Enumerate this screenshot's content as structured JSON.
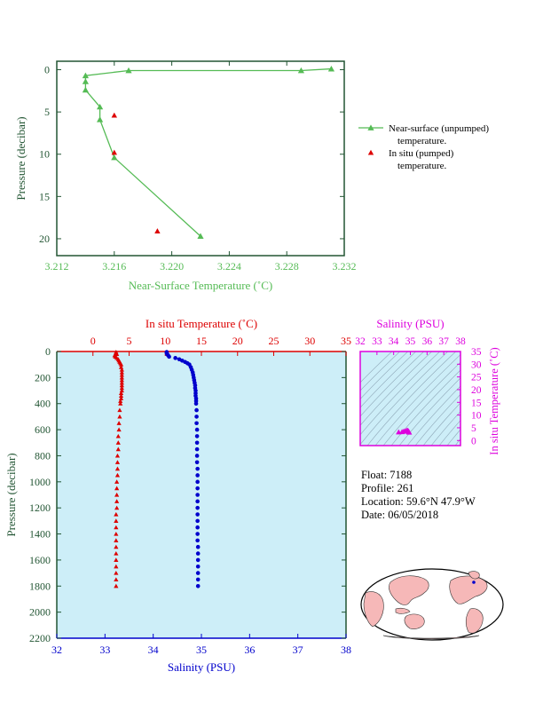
{
  "colors": {
    "top_green": "#55bb55",
    "axis_dark_green": "#225533",
    "insitu_red": "#dd0000",
    "salinity_blue": "#0000cc",
    "salinity_magenta": "#dd00dd",
    "plot_bg": "#cdeef8",
    "land": "#f6b8b8",
    "ocean": "#ffffff"
  },
  "float_info": {
    "float_line": "Float:  7188",
    "profile_line": "Profile:  261",
    "location_line": "Location:  59.6°N  47.9°W",
    "date_line": "Date:  06/05/2018"
  },
  "chart_data": [
    {
      "id": "near_surface",
      "type": "line",
      "xlabel": "Near-Surface Temperature (˚C)",
      "ylabel": "Pressure (decibar)",
      "xlim": [
        3.212,
        3.232
      ],
      "ylim": [
        22,
        -1
      ],
      "x_ticks": [
        "3.212",
        "3.216",
        "3.220",
        "3.224",
        "3.228",
        "3.232"
      ],
      "y_ticks": [
        "0",
        "5",
        "10",
        "15",
        "20"
      ],
      "series": [
        {
          "name": "Near-surface (unpumped) temperature.",
          "marker": "triangle",
          "points": [
            {
              "x": 3.2311,
              "y": -0.1
            },
            {
              "x": 3.229,
              "y": 0.1
            },
            {
              "x": 3.217,
              "y": 0.1
            },
            {
              "x": 3.214,
              "y": 0.7
            },
            {
              "x": 3.214,
              "y": 1.4
            },
            {
              "x": 3.214,
              "y": 2.4
            },
            {
              "x": 3.215,
              "y": 4.4
            },
            {
              "x": 3.215,
              "y": 5.9
            },
            {
              "x": 3.216,
              "y": 10.4
            },
            {
              "x": 3.222,
              "y": 19.7
            }
          ]
        },
        {
          "name": "In situ (pumped) temperature.",
          "marker": "triangle",
          "points": [
            {
              "x": 3.216,
              "y": 5.4
            },
            {
              "x": 3.216,
              "y": 9.8
            },
            {
              "x": 3.219,
              "y": 19.1
            }
          ]
        }
      ]
    },
    {
      "id": "profile",
      "type": "scatter",
      "title": "In situ Temperature (˚C)",
      "xlabel": "Salinity (PSU)",
      "ylabel": "Pressure (decibar)",
      "temp_lim": [
        -5,
        35
      ],
      "sal_lim": [
        32,
        38
      ],
      "ylim": [
        0,
        2200
      ],
      "temp_ticks": [
        "0",
        "5",
        "10",
        "15",
        "20",
        "25",
        "30",
        "35"
      ],
      "sal_ticks": [
        "32",
        "33",
        "34",
        "35",
        "36",
        "37",
        "38"
      ],
      "y_ticks": [
        "0",
        "200",
        "400",
        "600",
        "800",
        "1000",
        "1200",
        "1400",
        "1600",
        "1800",
        "2000",
        "2200"
      ],
      "temperature": [
        {
          "t": 3.2,
          "p": 4
        },
        {
          "t": 3.2,
          "p": 10
        },
        {
          "t": 3.3,
          "p": 20
        },
        {
          "t": 3.0,
          "p": 30
        },
        {
          "t": 3.1,
          "p": 40
        },
        {
          "t": 3.3,
          "p": 50
        },
        {
          "t": 3.5,
          "p": 60
        },
        {
          "t": 3.6,
          "p": 70
        },
        {
          "t": 3.7,
          "p": 80
        },
        {
          "t": 3.8,
          "p": 90
        },
        {
          "t": 3.9,
          "p": 100
        },
        {
          "t": 3.9,
          "p": 120
        },
        {
          "t": 4.0,
          "p": 140
        },
        {
          "t": 4.0,
          "p": 160
        },
        {
          "t": 4.0,
          "p": 180
        },
        {
          "t": 4.0,
          "p": 200
        },
        {
          "t": 4.0,
          "p": 220
        },
        {
          "t": 4.0,
          "p": 240
        },
        {
          "t": 4.0,
          "p": 260
        },
        {
          "t": 4.0,
          "p": 280
        },
        {
          "t": 4.0,
          "p": 300
        },
        {
          "t": 3.9,
          "p": 320
        },
        {
          "t": 3.9,
          "p": 340
        },
        {
          "t": 3.9,
          "p": 360
        },
        {
          "t": 3.8,
          "p": 380
        },
        {
          "t": 3.8,
          "p": 400
        },
        {
          "t": 3.7,
          "p": 450
        },
        {
          "t": 3.7,
          "p": 500
        },
        {
          "t": 3.6,
          "p": 550
        },
        {
          "t": 3.6,
          "p": 600
        },
        {
          "t": 3.5,
          "p": 650
        },
        {
          "t": 3.5,
          "p": 700
        },
        {
          "t": 3.5,
          "p": 750
        },
        {
          "t": 3.4,
          "p": 800
        },
        {
          "t": 3.4,
          "p": 850
        },
        {
          "t": 3.4,
          "p": 900
        },
        {
          "t": 3.4,
          "p": 950
        },
        {
          "t": 3.3,
          "p": 1000
        },
        {
          "t": 3.3,
          "p": 1050
        },
        {
          "t": 3.3,
          "p": 1100
        },
        {
          "t": 3.3,
          "p": 1150
        },
        {
          "t": 3.3,
          "p": 1200
        },
        {
          "t": 3.2,
          "p": 1250
        },
        {
          "t": 3.2,
          "p": 1300
        },
        {
          "t": 3.2,
          "p": 1350
        },
        {
          "t": 3.2,
          "p": 1400
        },
        {
          "t": 3.2,
          "p": 1450
        },
        {
          "t": 3.2,
          "p": 1500
        },
        {
          "t": 3.2,
          "p": 1550
        },
        {
          "t": 3.2,
          "p": 1600
        },
        {
          "t": 3.2,
          "p": 1650
        },
        {
          "t": 3.2,
          "p": 1700
        },
        {
          "t": 3.2,
          "p": 1750
        },
        {
          "t": 3.2,
          "p": 1800
        }
      ],
      "salinity": [
        {
          "s": 34.28,
          "p": 4
        },
        {
          "s": 34.28,
          "p": 10
        },
        {
          "s": 34.29,
          "p": 20
        },
        {
          "s": 34.31,
          "p": 30
        },
        {
          "s": 34.33,
          "p": 40
        },
        {
          "s": 34.46,
          "p": 50
        },
        {
          "s": 34.54,
          "p": 60
        },
        {
          "s": 34.6,
          "p": 70
        },
        {
          "s": 34.66,
          "p": 80
        },
        {
          "s": 34.71,
          "p": 90
        },
        {
          "s": 34.75,
          "p": 100
        },
        {
          "s": 34.78,
          "p": 120
        },
        {
          "s": 34.8,
          "p": 140
        },
        {
          "s": 34.82,
          "p": 160
        },
        {
          "s": 34.83,
          "p": 180
        },
        {
          "s": 34.84,
          "p": 200
        },
        {
          "s": 34.85,
          "p": 220
        },
        {
          "s": 34.86,
          "p": 240
        },
        {
          "s": 34.87,
          "p": 260
        },
        {
          "s": 34.87,
          "p": 280
        },
        {
          "s": 34.88,
          "p": 300
        },
        {
          "s": 34.88,
          "p": 320
        },
        {
          "s": 34.88,
          "p": 340
        },
        {
          "s": 34.89,
          "p": 360
        },
        {
          "s": 34.89,
          "p": 380
        },
        {
          "s": 34.89,
          "p": 400
        },
        {
          "s": 34.9,
          "p": 450
        },
        {
          "s": 34.9,
          "p": 500
        },
        {
          "s": 34.9,
          "p": 550
        },
        {
          "s": 34.91,
          "p": 600
        },
        {
          "s": 34.91,
          "p": 650
        },
        {
          "s": 34.91,
          "p": 700
        },
        {
          "s": 34.91,
          "p": 750
        },
        {
          "s": 34.91,
          "p": 800
        },
        {
          "s": 34.91,
          "p": 850
        },
        {
          "s": 34.92,
          "p": 900
        },
        {
          "s": 34.92,
          "p": 950
        },
        {
          "s": 34.92,
          "p": 1000
        },
        {
          "s": 34.92,
          "p": 1050
        },
        {
          "s": 34.92,
          "p": 1100
        },
        {
          "s": 34.92,
          "p": 1150
        },
        {
          "s": 34.92,
          "p": 1200
        },
        {
          "s": 34.92,
          "p": 1250
        },
        {
          "s": 34.92,
          "p": 1300
        },
        {
          "s": 34.92,
          "p": 1350
        },
        {
          "s": 34.92,
          "p": 1400
        },
        {
          "s": 34.92,
          "p": 1450
        },
        {
          "s": 34.93,
          "p": 1500
        },
        {
          "s": 34.93,
          "p": 1550
        },
        {
          "s": 34.93,
          "p": 1600
        },
        {
          "s": 34.93,
          "p": 1650
        },
        {
          "s": 34.93,
          "p": 1700
        },
        {
          "s": 34.93,
          "p": 1750
        },
        {
          "s": 34.93,
          "p": 1800
        }
      ]
    },
    {
      "id": "ts_diagram",
      "type": "scatter",
      "xlabel": "Salinity (PSU)",
      "ylabel": "In situ Temperature (˚C)",
      "xlim": [
        32,
        38
      ],
      "ylim": [
        -2,
        35
      ],
      "x_ticks": [
        "32",
        "33",
        "34",
        "35",
        "36",
        "37",
        "38"
      ],
      "y_ticks": [
        "0",
        "5",
        "10",
        "15",
        "20",
        "25",
        "30",
        "35"
      ],
      "points": [
        {
          "s": 34.3,
          "t": 3.3
        },
        {
          "s": 34.5,
          "t": 3.4
        },
        {
          "s": 34.6,
          "t": 3.6
        },
        {
          "s": 34.7,
          "t": 3.8
        },
        {
          "s": 34.8,
          "t": 4.0
        },
        {
          "s": 34.85,
          "t": 3.9
        },
        {
          "s": 34.88,
          "t": 3.7
        },
        {
          "s": 34.9,
          "t": 3.5
        },
        {
          "s": 34.92,
          "t": 3.3
        },
        {
          "s": 34.93,
          "t": 3.2
        }
      ]
    }
  ]
}
